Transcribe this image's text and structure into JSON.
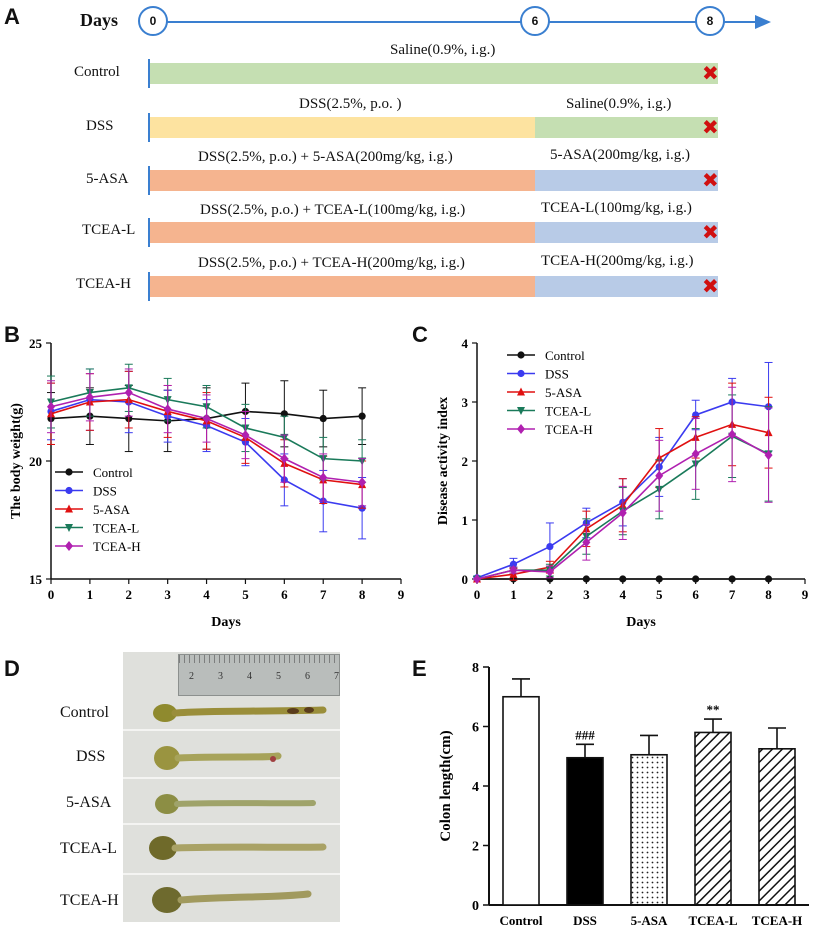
{
  "panelA": {
    "label": "A",
    "days_label": "Days",
    "day_marks": [
      "0",
      "6",
      "8"
    ],
    "colors": {
      "saline": "#c5dfb2",
      "dss": "#fde3a0",
      "dss_drug": "#f5b48f",
      "drug": "#b8cbe7",
      "axis": "#3a7fd0",
      "x": "#d01010"
    },
    "rows": [
      {
        "name": "Control",
        "seg1_text": "",
        "seg2_text": "Saline(0.9%, i.g.)",
        "full_text": "Saline(0.9%, i.g.)"
      },
      {
        "name": "DSS",
        "seg1_text": "DSS(2.5%, p.o. )",
        "seg2_text": "Saline(0.9%, i.g.)"
      },
      {
        "name": "5-ASA",
        "seg1_text": "DSS(2.5%, p.o.) + 5-ASA(200mg/kg, i.g.)",
        "seg2_text": "5-ASA(200mg/kg, i.g.)"
      },
      {
        "name": "TCEA-L",
        "seg1_text": "DSS(2.5%, p.o.) + TCEA-L(100mg/kg, i.g.)",
        "seg2_text": "TCEA-L(100mg/kg, i.g.)"
      },
      {
        "name": "TCEA-H",
        "seg1_text": "DSS(2.5%, p.o.) + TCEA-H(200mg/kg, i.g.)",
        "seg2_text": "TCEA-H(200mg/kg, i.g.)"
      }
    ]
  },
  "panelD": {
    "label": "D",
    "rows": [
      "Control",
      "DSS",
      "5-ASA",
      "TCEA-L",
      "TCEA-H"
    ],
    "ruler_marks": [
      "2",
      "3",
      "4",
      "5",
      "6",
      "7"
    ]
  },
  "chart_data": [
    {
      "panel": "B",
      "type": "line",
      "xlabel": "Days",
      "ylabel": "The body weight(g)",
      "xlim": [
        0,
        9
      ],
      "ylim": [
        15,
        25
      ],
      "xticks": [
        "0",
        "1",
        "2",
        "3",
        "4",
        "5",
        "6",
        "7",
        "8",
        "9"
      ],
      "yticks": [
        "15",
        "20",
        "25"
      ],
      "legend_position": "bottom-left",
      "x": [
        0,
        1,
        2,
        3,
        4,
        5,
        6,
        7,
        8
      ],
      "series": [
        {
          "name": "Control",
          "color": "#111111",
          "marker": "circle",
          "values": [
            21.8,
            21.9,
            21.8,
            21.7,
            21.8,
            22.1,
            22.0,
            21.8,
            21.9
          ],
          "errors": [
            1.1,
            1.2,
            1.4,
            1.3,
            1.3,
            1.2,
            1.4,
            1.2,
            1.2
          ]
        },
        {
          "name": "DSS",
          "color": "#3b3bf0",
          "marker": "circle",
          "values": [
            22.1,
            22.6,
            22.5,
            21.9,
            21.5,
            20.8,
            19.2,
            18.3,
            18.0
          ],
          "errors": [
            1.2,
            1.3,
            1.3,
            1.1,
            1.1,
            1.0,
            1.1,
            1.3,
            1.3
          ]
        },
        {
          "name": "5-ASA",
          "color": "#e01010",
          "marker": "triangle",
          "values": [
            22.0,
            22.5,
            22.6,
            22.1,
            21.7,
            21.0,
            19.9,
            19.2,
            19.0
          ],
          "errors": [
            1.3,
            1.2,
            1.2,
            1.1,
            1.2,
            1.1,
            1.0,
            1.0,
            1.0
          ]
        },
        {
          "name": "TCEA-L",
          "color": "#1a7a5a",
          "marker": "triangle-down",
          "values": [
            22.5,
            22.9,
            23.1,
            22.6,
            22.3,
            21.4,
            21.0,
            20.1,
            20.0
          ],
          "errors": [
            1.1,
            1.0,
            1.0,
            0.9,
            0.9,
            1.0,
            0.9,
            0.9,
            0.9
          ]
        },
        {
          "name": "TCEA-H",
          "color": "#b020b0",
          "marker": "diamond",
          "values": [
            22.3,
            22.7,
            22.9,
            22.2,
            21.8,
            21.1,
            20.1,
            19.3,
            19.1
          ],
          "errors": [
            1.1,
            1.0,
            1.0,
            1.0,
            1.0,
            1.0,
            1.0,
            1.0,
            1.0
          ]
        }
      ]
    },
    {
      "panel": "C",
      "type": "line",
      "xlabel": "Days",
      "ylabel": "Disease activity index",
      "xlim": [
        0,
        9
      ],
      "ylim": [
        0,
        4
      ],
      "xticks": [
        "0",
        "1",
        "2",
        "3",
        "4",
        "5",
        "6",
        "7",
        "8",
        "9"
      ],
      "yticks": [
        "0",
        "1",
        "2",
        "3",
        "4"
      ],
      "legend_position": "top-left",
      "x": [
        0,
        1,
        2,
        3,
        4,
        5,
        6,
        7,
        8
      ],
      "series": [
        {
          "name": "Control",
          "color": "#111111",
          "marker": "circle",
          "values": [
            0,
            0,
            0,
            0,
            0,
            0,
            0,
            0,
            0
          ],
          "errors": [
            0,
            0,
            0,
            0,
            0,
            0,
            0,
            0,
            0
          ]
        },
        {
          "name": "DSS",
          "color": "#3b3bf0",
          "marker": "circle",
          "values": [
            0.02,
            0.25,
            0.55,
            0.95,
            1.3,
            1.9,
            2.78,
            3.0,
            2.92
          ],
          "errors": [
            0.02,
            0.1,
            0.4,
            0.25,
            0.4,
            0.5,
            0.25,
            0.4,
            0.75
          ]
        },
        {
          "name": "5-ASA",
          "color": "#e01010",
          "marker": "triangle",
          "values": [
            0.0,
            0.08,
            0.2,
            0.85,
            1.25,
            2.05,
            2.4,
            2.62,
            2.48
          ],
          "errors": [
            0.0,
            0.1,
            0.1,
            0.3,
            0.45,
            0.5,
            0.35,
            0.7,
            0.6
          ]
        },
        {
          "name": "TCEA-L",
          "color": "#1a7a5a",
          "marker": "triangle-down",
          "values": [
            0.0,
            0.15,
            0.15,
            0.72,
            1.15,
            1.52,
            1.95,
            2.42,
            2.12
          ],
          "errors": [
            0.0,
            0.05,
            0.1,
            0.3,
            0.4,
            0.5,
            0.6,
            0.7,
            0.8
          ]
        },
        {
          "name": "TCEA-H",
          "color": "#b020b0",
          "marker": "diamond",
          "values": [
            0.0,
            0.15,
            0.12,
            0.62,
            1.12,
            1.75,
            2.12,
            2.45,
            2.1
          ],
          "errors": [
            0.0,
            0.05,
            0.1,
            0.3,
            0.45,
            0.6,
            0.6,
            0.8,
            0.8
          ]
        }
      ]
    },
    {
      "panel": "E",
      "type": "bar",
      "ylabel": "Colon length(cm)",
      "ylim": [
        0,
        8
      ],
      "yticks": [
        "0",
        "2",
        "4",
        "6",
        "8"
      ],
      "categories": [
        "Control",
        "DSS",
        "5-ASA",
        "TCEA-L",
        "TCEA-H"
      ],
      "values": [
        7.0,
        4.95,
        5.05,
        5.8,
        5.25
      ],
      "errors": [
        0.6,
        0.45,
        0.65,
        0.45,
        0.7
      ],
      "fills": [
        "white",
        "black",
        "dots",
        "hatch",
        "hatch"
      ],
      "annotations": [
        "",
        "###",
        "",
        "**",
        ""
      ]
    }
  ]
}
